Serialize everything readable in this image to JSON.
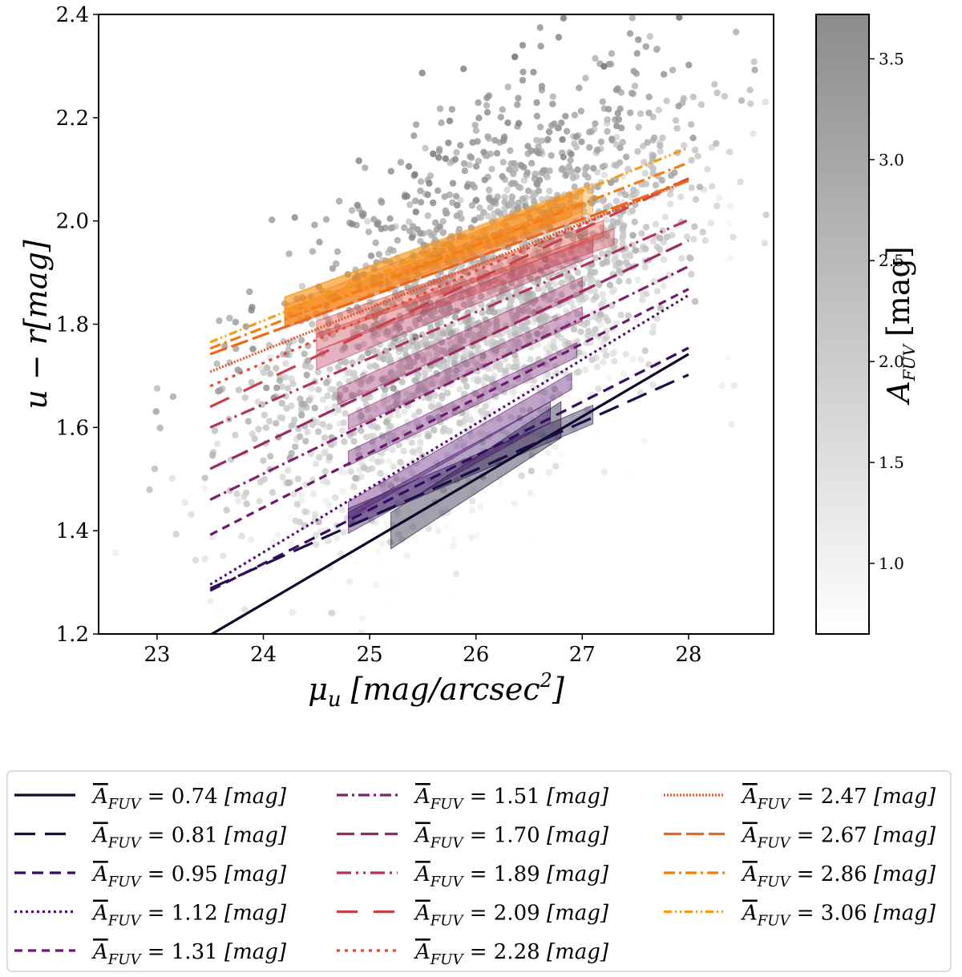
{
  "chart_data": {
    "type": "scatter",
    "title": "",
    "xlabel": "μu [mag/arcsec2]",
    "xlabel_parts": {
      "symbol": "μ",
      "sub": "u",
      "unit_main": "[mag/arcsec",
      "unit_sup": "2",
      "unit_end": "]"
    },
    "ylabel": "u − r[mag]",
    "xlim": [
      22.45,
      28.8
    ],
    "ylim": [
      1.2,
      2.4
    ],
    "xticks": [
      23,
      24,
      25,
      26,
      27,
      28
    ],
    "xtick_labels": [
      "23",
      "24",
      "25",
      "26",
      "27",
      "28"
    ],
    "yticks": [
      1.2,
      1.4,
      1.6,
      1.8,
      2.0,
      2.2,
      2.4
    ],
    "ytick_labels": [
      "1.2",
      "1.4",
      "1.6",
      "1.8",
      "2.0",
      "2.2",
      "2.4"
    ],
    "scatter_points": 2600,
    "colorbar": {
      "label": "AFUV [mag]",
      "label_parts": {
        "symbol": "A",
        "sub": "FUV",
        "unit": "[mag]"
      },
      "range": [
        0.65,
        3.72
      ],
      "ticks": [
        1.0,
        1.5,
        2.0,
        2.5,
        3.0,
        3.5
      ],
      "tick_labels": [
        "1.0",
        "1.5",
        "2.0",
        "2.5",
        "3.0",
        "3.5"
      ]
    },
    "series": [
      {
        "name": "A_FUV = 0.74 [mag]",
        "a_fuv": "0.74",
        "color": "#0d0829",
        "dash": "",
        "x_range": [
          23.5,
          28.0
        ],
        "y_range": [
          1.198,
          1.742
        ],
        "band": {
          "x_range": [
            25.2,
            26.8
          ],
          "y_center": [
            1.4,
            1.615
          ],
          "half_width": 0.035
        }
      },
      {
        "name": "A_FUV = 0.81 [mag]",
        "a_fuv": "0.81",
        "color": "#1e0c45",
        "dash": "26,12",
        "x_range": [
          23.5,
          28.0
        ],
        "y_range": [
          1.288,
          1.702
        ],
        "band": {
          "x_range": [
            24.8,
            27.1
          ],
          "y_center": [
            1.425,
            1.625
          ],
          "half_width": 0.018
        }
      },
      {
        "name": "A_FUV = 0.95 [mag]",
        "a_fuv": "0.95",
        "color": "#350b61",
        "dash": "14,8",
        "x_range": [
          23.5,
          28.0
        ],
        "y_range": [
          1.284,
          1.754
        ],
        "band": {
          "x_range": [
            24.8,
            26.7
          ],
          "y_center": [
            1.415,
            1.63
          ],
          "half_width": 0.02
        }
      },
      {
        "name": "A_FUV = 1.12 [mag]",
        "a_fuv": "1.12",
        "color": "#520e6d",
        "dash": "3,4",
        "x_range": [
          23.5,
          28.0
        ],
        "y_range": [
          1.296,
          1.856
        ],
        "band": {
          "x_range": [
            24.8,
            26.9
          ],
          "y_center": [
            1.44,
            1.69
          ],
          "half_width": 0.016
        }
      },
      {
        "name": "A_FUV = 1.31 [mag]",
        "a_fuv": "1.31",
        "color": "#6b186e",
        "dash": "10,7",
        "x_range": [
          23.5,
          28.0
        ],
        "y_range": [
          1.392,
          1.868
        ],
        "band": {
          "x_range": [
            24.8,
            26.95
          ],
          "y_center": [
            1.54,
            1.75
          ],
          "half_width": 0.014
        }
      },
      {
        "name": "A_FUV = 1.51 [mag]",
        "a_fuv": "1.51",
        "color": "#84206b",
        "dash": "14,5,3,5",
        "x_range": [
          23.5,
          28.0
        ],
        "y_range": [
          1.46,
          1.912
        ],
        "band": {
          "x_range": [
            24.8,
            27.0
          ],
          "y_center": [
            1.61,
            1.82
          ],
          "half_width": 0.014
        }
      },
      {
        "name": "A_FUV = 1.70 [mag]",
        "a_fuv": "1.70",
        "color": "#9c2964",
        "dash": "22,8",
        "x_range": [
          23.5,
          28.0
        ],
        "y_range": [
          1.52,
          1.962
        ],
        "band": {
          "x_range": [
            24.7,
            27.0
          ],
          "y_center": [
            1.66,
            1.875
          ],
          "half_width": 0.016
        }
      },
      {
        "name": "A_FUV = 1.89 [mag]",
        "a_fuv": "1.89",
        "color": "#b5325a",
        "dash": "18,6,3,6,3,6",
        "x_range": [
          23.5,
          28.0
        ],
        "y_range": [
          1.6,
          2.002
        ],
        "band": {
          "x_range": [
            24.5,
            27.1
          ],
          "y_center": [
            1.73,
            1.95
          ],
          "half_width": 0.018
        }
      },
      {
        "name": "A_FUV = 2.09 [mag]",
        "a_fuv": "2.09",
        "color": "#cb3e4a",
        "dash": "26,20",
        "x_range": [
          23.5,
          28.0
        ],
        "y_range": [
          1.64,
          2.082
        ],
        "band": {
          "x_range": [
            24.5,
            27.3
          ],
          "y_center": [
            1.765,
            1.97
          ],
          "half_width": 0.016
        }
      },
      {
        "name": "A_FUV = 2.28 [mag]",
        "a_fuv": "2.28",
        "color": "#e0483a",
        "dash": "4,6",
        "x_range": [
          23.5,
          28.0
        ],
        "y_range": [
          1.68,
          2.082
        ],
        "band": {
          "x_range": [
            24.5,
            27.2
          ],
          "y_center": [
            1.79,
            1.985
          ],
          "half_width": 0.016
        }
      },
      {
        "name": "A_FUV = 2.47 [mag]",
        "a_fuv": "2.47",
        "color": "#ec5222",
        "dash": "2,2",
        "x_range": [
          23.5,
          28.0
        ],
        "y_range": [
          1.708,
          2.078
        ],
        "band": {
          "x_range": [
            24.2,
            27.0
          ],
          "y_center": [
            1.81,
            2.02
          ],
          "half_width": 0.018
        }
      },
      {
        "name": "A_FUV = 2.67 [mag]",
        "a_fuv": "2.67",
        "color": "#f06615",
        "dash": "22,6",
        "x_range": [
          23.5,
          28.0
        ],
        "y_range": [
          1.742,
          2.078
        ],
        "band": {
          "x_range": [
            24.2,
            26.9
          ],
          "y_center": [
            1.815,
            2.03
          ],
          "half_width": 0.022
        }
      },
      {
        "name": "A_FUV = 2.86 [mag]",
        "a_fuv": "2.86",
        "color": "#f57d0f",
        "dash": "14,5,3,5",
        "x_range": [
          23.5,
          28.0
        ],
        "y_range": [
          1.753,
          2.113
        ],
        "band": {
          "x_range": [
            24.2,
            27.0
          ],
          "y_center": [
            1.83,
            2.04
          ],
          "half_width": 0.022
        }
      },
      {
        "name": "A_FUV = 3.06 [mag]",
        "a_fuv": "3.06",
        "color": "#f99a13",
        "dash": "10,4,2,4,2,4",
        "x_range": [
          23.5,
          28.0
        ],
        "y_range": [
          1.765,
          2.142
        ],
        "band": {
          "x_range": [
            24.2,
            27.1
          ],
          "y_center": [
            1.825,
            2.045
          ],
          "half_width": 0.028
        }
      }
    ],
    "legend": {
      "location": "below",
      "prefix_symbol": "A",
      "prefix_sub": "FUV",
      "unit": "[mag]",
      "columns": 3
    }
  }
}
